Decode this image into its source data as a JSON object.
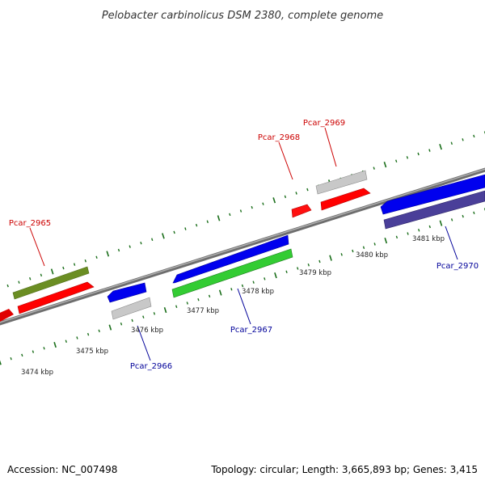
{
  "title": "Pelobacter carbinolicus DSM 2380, complete genome",
  "footer": {
    "accession": "Accession: NC_007498",
    "summary": "Topology: circular; Length: 3,665,893 bp; Genes: 3,415"
  },
  "colors": {
    "forward_label": "#cc0000",
    "reverse_label": "#000099",
    "tick": "#1a6e1a",
    "backbone": "#888888",
    "red": "#ff0000",
    "blue": "#0000ee",
    "gray": "#c0c0c0",
    "olive": "#6b8e23",
    "green": "#33cc33",
    "purple": "#4a3f99"
  },
  "scale_labels": [
    "3474 kbp",
    "3475 kbp",
    "3476 kbp",
    "3477 kbp",
    "3478 kbp",
    "3479 kbp",
    "3480 kbp",
    "3481 kbp"
  ],
  "gene_labels": {
    "pcar_2965": "Pcar_2965",
    "pcar_2966": "Pcar_2966",
    "pcar_2967": "Pcar_2967",
    "pcar_2968": "Pcar_2968",
    "pcar_2969": "Pcar_2969",
    "pcar_2970": "Pcar_2970"
  }
}
